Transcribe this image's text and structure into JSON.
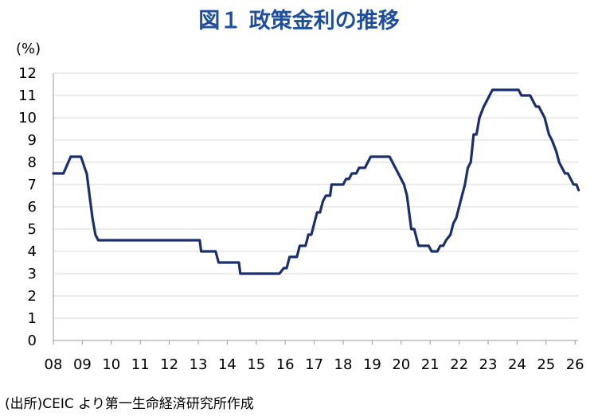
{
  "title": "図１ 政策金利の推移",
  "source": "(出所)CEIC より第一生命経済研究所作成",
  "chart_data": {
    "type": "line",
    "title": "図１ 政策金利の推移",
    "ylabel": "(%)",
    "xlabel": "",
    "ylim": [
      0,
      12
    ],
    "xlim": [
      2008,
      2026.2
    ],
    "yticks": [
      "0",
      "1",
      "2",
      "3",
      "4",
      "5",
      "6",
      "7",
      "8",
      "9",
      "10",
      "11",
      "12"
    ],
    "xticks": [
      "08",
      "09",
      "10",
      "11",
      "12",
      "13",
      "14",
      "15",
      "16",
      "17",
      "18",
      "19",
      "20",
      "21",
      "22",
      "23",
      "24",
      "25",
      "26"
    ],
    "grid": true,
    "line_color": "#1a2f6b",
    "series": [
      {
        "x": [
          2008.0,
          2008.35,
          2008.6,
          2008.95,
          2009.02,
          2009.08,
          2009.15,
          2009.25,
          2009.35,
          2009.45,
          2009.55,
          2009.65,
          2013.05,
          2013.1,
          2013.6,
          2013.7,
          2014.2,
          2014.4,
          2014.45,
          2015.8,
          2015.95,
          2016.05,
          2016.15,
          2016.4,
          2016.5,
          2016.7,
          2016.8,
          2016.9,
          2017.0,
          2017.1,
          2017.2,
          2017.3,
          2017.4,
          2017.55,
          2017.6,
          2018.0,
          2018.1,
          2018.2,
          2018.3,
          2018.45,
          2018.55,
          2018.75,
          2018.85,
          2018.95,
          2019.05,
          2019.6,
          2019.7,
          2019.8,
          2019.9,
          2020.0,
          2020.1,
          2020.2,
          2020.25,
          2020.35,
          2020.45,
          2020.6,
          2020.75,
          2020.95,
          2021.05,
          2021.25,
          2021.35,
          2021.45,
          2021.55,
          2021.7,
          2021.8,
          2021.9,
          2022.0,
          2022.1,
          2022.2,
          2022.3,
          2022.4,
          2022.5,
          2022.6,
          2022.7,
          2022.85,
          2022.95,
          2023.05,
          2023.15,
          2023.2,
          2023.3,
          2024.05,
          2024.15,
          2024.45,
          2024.55,
          2024.65,
          2024.75,
          2024.85,
          2024.95,
          2025.0,
          2025.1,
          2025.2,
          2025.35,
          2025.45,
          2025.55,
          2025.65,
          2025.75,
          2025.85,
          2025.95,
          2026.05,
          2026.12
        ],
        "y": [
          7.5,
          7.5,
          8.25,
          8.25,
          8.0,
          7.75,
          7.5,
          6.5,
          5.5,
          4.75,
          4.5,
          4.5,
          4.5,
          4.0,
          4.0,
          3.5,
          3.5,
          3.5,
          3.0,
          3.0,
          3.25,
          3.25,
          3.75,
          3.75,
          4.25,
          4.25,
          4.75,
          4.75,
          5.25,
          5.75,
          5.75,
          6.25,
          6.5,
          6.5,
          7.0,
          7.0,
          7.25,
          7.25,
          7.5,
          7.5,
          7.75,
          7.75,
          8.0,
          8.25,
          8.25,
          8.25,
          8.0,
          7.75,
          7.5,
          7.25,
          7.0,
          6.5,
          6.0,
          5.0,
          5.0,
          4.25,
          4.25,
          4.25,
          4.0,
          4.0,
          4.25,
          4.25,
          4.5,
          4.75,
          5.25,
          5.5,
          6.0,
          6.5,
          7.0,
          7.75,
          8.0,
          9.25,
          9.25,
          10.0,
          10.5,
          10.75,
          11.0,
          11.25,
          11.25,
          11.25,
          11.25,
          11.0,
          11.0,
          10.75,
          10.5,
          10.5,
          10.25,
          10.0,
          9.75,
          9.25,
          9.0,
          8.5,
          8.0,
          7.75,
          7.5,
          7.5,
          7.25,
          7.0,
          7.0,
          6.75
        ]
      }
    ]
  }
}
